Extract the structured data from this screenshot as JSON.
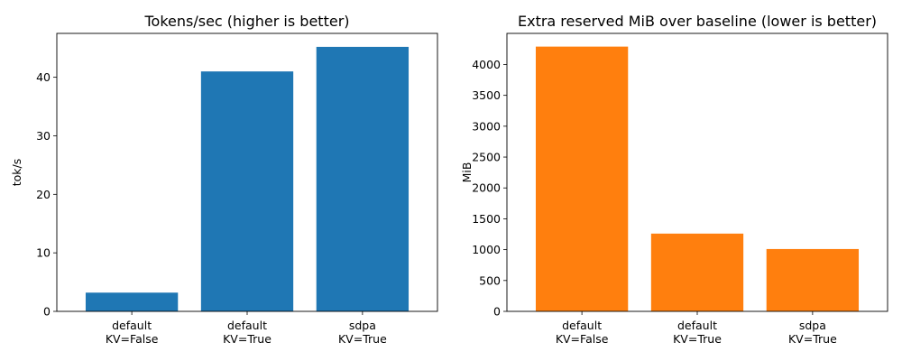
{
  "chart_data": [
    {
      "type": "bar",
      "title": "Tokens/sec (higher is better)",
      "xlabel": "",
      "ylabel": "tok/s",
      "categories": [
        [
          "default",
          "KV=False"
        ],
        [
          "default",
          "KV=True"
        ],
        [
          "sdpa",
          "KV=True"
        ]
      ],
      "values": [
        3.2,
        41.0,
        45.2
      ],
      "ylim": [
        0,
        47.5
      ],
      "yticks": [
        0,
        10,
        20,
        30,
        40
      ],
      "color": "#1f77b4",
      "grid": false
    },
    {
      "type": "bar",
      "title": "Extra reserved MiB over baseline (lower is better)",
      "xlabel": "",
      "ylabel": "MiB",
      "categories": [
        [
          "default",
          "KV=False"
        ],
        [
          "default",
          "KV=True"
        ],
        [
          "sdpa",
          "KV=True"
        ]
      ],
      "values": [
        4290,
        1260,
        1010
      ],
      "ylim": [
        0,
        4504
      ],
      "yticks": [
        0,
        500,
        1000,
        1500,
        2000,
        2500,
        3000,
        3500,
        4000
      ],
      "color": "#ff7f0e",
      "grid": false
    }
  ]
}
